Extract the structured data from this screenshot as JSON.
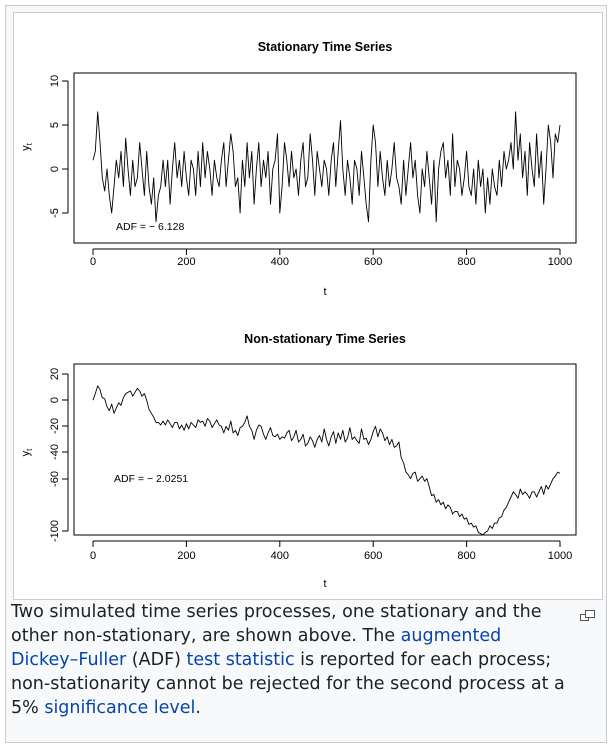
{
  "chart_data": [
    {
      "type": "line",
      "title": "Stationary Time Series",
      "xlabel": "t",
      "ylabel": "y",
      "ylabel_sub": "t",
      "xlim": [
        0,
        1000
      ],
      "ylim": [
        -7.5,
        11
      ],
      "xticks": [
        "0",
        "200",
        "400",
        "600",
        "800",
        "1000"
      ],
      "yticks": [
        "-5",
        "0",
        "5",
        "10"
      ],
      "annotation": "ADF = − 6.128",
      "series": [
        {
          "name": "stationary",
          "x": [
            0,
            5,
            10,
            15,
            20,
            25,
            30,
            35,
            40,
            45,
            50,
            55,
            60,
            65,
            70,
            75,
            80,
            85,
            90,
            95,
            100,
            105,
            110,
            115,
            120,
            125,
            130,
            135,
            140,
            145,
            150,
            155,
            160,
            165,
            170,
            175,
            180,
            185,
            190,
            195,
            200,
            205,
            210,
            215,
            220,
            225,
            230,
            235,
            240,
            245,
            250,
            255,
            260,
            265,
            270,
            275,
            280,
            285,
            290,
            295,
            300,
            305,
            310,
            315,
            320,
            325,
            330,
            335,
            340,
            345,
            350,
            355,
            360,
            365,
            370,
            375,
            380,
            385,
            390,
            395,
            400,
            405,
            410,
            415,
            420,
            425,
            430,
            435,
            440,
            445,
            450,
            455,
            460,
            465,
            470,
            475,
            480,
            485,
            490,
            495,
            500,
            505,
            510,
            515,
            520,
            525,
            530,
            535,
            540,
            545,
            550,
            555,
            560,
            565,
            570,
            575,
            580,
            585,
            590,
            595,
            600,
            605,
            610,
            615,
            620,
            625,
            630,
            635,
            640,
            645,
            650,
            655,
            660,
            665,
            670,
            675,
            680,
            685,
            690,
            695,
            700,
            705,
            710,
            715,
            720,
            725,
            730,
            735,
            740,
            745,
            750,
            755,
            760,
            765,
            770,
            775,
            780,
            785,
            790,
            795,
            800,
            805,
            810,
            815,
            820,
            825,
            830,
            835,
            840,
            845,
            850,
            855,
            860,
            865,
            870,
            875,
            880,
            885,
            890,
            895,
            900,
            905,
            910,
            915,
            920,
            925,
            930,
            935,
            940,
            945,
            950,
            955,
            960,
            965,
            970,
            975,
            980,
            985,
            990,
            995,
            1000
          ],
          "values": [
            1,
            2,
            6.5,
            3,
            -1,
            -2.5,
            0,
            -3,
            -5,
            -2,
            1,
            -1,
            2,
            -2,
            3.5,
            0,
            -3,
            1,
            -2,
            -1,
            3,
            0,
            -3,
            2,
            -2,
            -4,
            -1,
            -6,
            -3,
            -2,
            1,
            -2,
            1,
            -4,
            0,
            3,
            -1,
            1,
            -2,
            2,
            -1,
            -3,
            1,
            0,
            -3,
            2,
            -2,
            3,
            -1,
            2,
            0,
            -3,
            1,
            -1,
            -2,
            1,
            3,
            -2,
            1,
            4,
            2,
            -2,
            -1,
            -5,
            1,
            -2,
            3,
            -1,
            2,
            -4,
            0,
            3,
            -2,
            1,
            -1,
            2,
            -4,
            0,
            1,
            4,
            -5,
            -2,
            3,
            1,
            -2,
            2,
            -1,
            0,
            -3,
            1,
            3,
            -2,
            -1,
            4,
            1,
            -3,
            2,
            0,
            -2,
            1,
            0,
            -3,
            1,
            3,
            -2,
            2,
            5.5,
            0,
            -3,
            1,
            -1,
            -4,
            1,
            0,
            -3,
            2,
            -1,
            -4,
            -6,
            1,
            5,
            3,
            -2,
            2,
            -1,
            -3,
            1,
            -2,
            0,
            3,
            -1,
            -2,
            -4,
            1,
            -3,
            0,
            3,
            -1,
            1,
            -3,
            -5,
            0,
            -2,
            2,
            -1,
            -4,
            1,
            -6,
            0,
            2,
            3,
            -1,
            1,
            -3,
            4,
            -2,
            1,
            0,
            -3,
            -1,
            2,
            -2,
            -3,
            0,
            -4,
            1,
            -2,
            0,
            -5,
            -1,
            -4,
            0,
            -2,
            -3,
            1,
            -2,
            2,
            0,
            1,
            3,
            0,
            6.5,
            1,
            4,
            -1,
            2,
            -3,
            3,
            0,
            -2,
            4,
            -1,
            2,
            -4,
            0,
            5,
            3,
            -1,
            4,
            3,
            5
          ]
        }
      ]
    },
    {
      "type": "line",
      "title": "Non-stationary Time Series",
      "xlabel": "t",
      "ylabel": "y",
      "ylabel_sub": "t",
      "xlim": [
        0,
        1000
      ],
      "ylim": [
        -105,
        25
      ],
      "xticks": [
        "0",
        "200",
        "400",
        "600",
        "800",
        "1000"
      ],
      "yticks": [
        "-100",
        "-60",
        "-40",
        "-20",
        "0",
        "20"
      ],
      "annotation": "ADF = − 2.0251",
      "series": [
        {
          "name": "non-stationary",
          "x": [
            0,
            5,
            10,
            15,
            20,
            25,
            30,
            35,
            40,
            45,
            50,
            55,
            60,
            65,
            70,
            75,
            80,
            85,
            90,
            95,
            100,
            105,
            110,
            115,
            120,
            125,
            130,
            135,
            140,
            145,
            150,
            155,
            160,
            165,
            170,
            175,
            180,
            185,
            190,
            195,
            200,
            205,
            210,
            215,
            220,
            225,
            230,
            235,
            240,
            245,
            250,
            255,
            260,
            265,
            270,
            275,
            280,
            285,
            290,
            295,
            300,
            305,
            310,
            315,
            320,
            325,
            330,
            335,
            340,
            345,
            350,
            355,
            360,
            365,
            370,
            375,
            380,
            385,
            390,
            395,
            400,
            405,
            410,
            415,
            420,
            425,
            430,
            435,
            440,
            445,
            450,
            455,
            460,
            465,
            470,
            475,
            480,
            485,
            490,
            495,
            500,
            505,
            510,
            515,
            520,
            525,
            530,
            535,
            540,
            545,
            550,
            555,
            560,
            565,
            570,
            575,
            580,
            585,
            590,
            595,
            600,
            605,
            610,
            615,
            620,
            625,
            630,
            635,
            640,
            645,
            650,
            655,
            660,
            665,
            670,
            675,
            680,
            685,
            690,
            695,
            700,
            705,
            710,
            715,
            720,
            725,
            730,
            735,
            740,
            745,
            750,
            755,
            760,
            765,
            770,
            775,
            780,
            785,
            790,
            795,
            800,
            805,
            810,
            815,
            820,
            825,
            830,
            835,
            840,
            845,
            850,
            855,
            860,
            865,
            870,
            875,
            880,
            885,
            890,
            895,
            900,
            905,
            910,
            915,
            920,
            925,
            930,
            935,
            940,
            945,
            950,
            955,
            960,
            965,
            970,
            975,
            980,
            985,
            990,
            995,
            1000
          ],
          "values": [
            0,
            5,
            11,
            8,
            2,
            1,
            -5,
            -8,
            -3,
            -10,
            -6,
            -2,
            -4,
            2,
            5,
            6,
            7,
            3,
            6,
            9,
            7,
            3,
            5,
            0,
            -7,
            -10,
            -13,
            -17,
            -17,
            -19,
            -16,
            -19,
            -15,
            -18,
            -21,
            -17,
            -17,
            -22,
            -19,
            -23,
            -18,
            -22,
            -17,
            -19,
            -21,
            -15,
            -17,
            -16,
            -20,
            -14,
            -16,
            -21,
            -18,
            -15,
            -19,
            -20,
            -25,
            -20,
            -23,
            -16,
            -25,
            -23,
            -27,
            -21,
            -20,
            -17,
            -12,
            -20,
            -23,
            -30,
            -23,
            -19,
            -20,
            -26,
            -30,
            -25,
            -21,
            -27,
            -28,
            -26,
            -30,
            -28,
            -29,
            -25,
            -23,
            -31,
            -28,
            -23,
            -32,
            -30,
            -26,
            -35,
            -33,
            -28,
            -31,
            -36,
            -30,
            -27,
            -32,
            -22,
            -30,
            -35,
            -28,
            -24,
            -33,
            -25,
            -30,
            -23,
            -32,
            -29,
            -21,
            -30,
            -28,
            -31,
            -33,
            -22,
            -30,
            -29,
            -34,
            -30,
            -24,
            -20,
            -28,
            -22,
            -25,
            -31,
            -28,
            -34,
            -30,
            -36,
            -35,
            -32,
            -44,
            -48,
            -55,
            -57,
            -60,
            -56,
            -55,
            -62,
            -60,
            -58,
            -62,
            -60,
            -66,
            -73,
            -72,
            -78,
            -76,
            -80,
            -78,
            -83,
            -80,
            -82,
            -87,
            -85,
            -85,
            -89,
            -87,
            -91,
            -90,
            -95,
            -94,
            -97,
            -96,
            -101,
            -102,
            -103,
            -101,
            -100,
            -96,
            -98,
            -94,
            -94,
            -90,
            -89,
            -84,
            -82,
            -78,
            -74,
            -70,
            -72,
            -75,
            -68,
            -72,
            -70,
            -72,
            -75,
            -70,
            -70,
            -74,
            -70,
            -66,
            -72,
            -65,
            -68,
            -64,
            -60,
            -58,
            -55,
            -56
          ]
        }
      ]
    }
  ],
  "caption": {
    "t1": "Two simulated time series processes, one stationary and the other non-stationary, are shown above. The ",
    "link1": "augmented Dickey–Fuller",
    "t2": " (ADF) ",
    "link2": "test statistic",
    "t3": " is reported for each process; non-stationarity cannot be rejected for the second process at a 5% ",
    "link3": "significance level",
    "t4": "."
  },
  "magnify_icon": "enlarge-icon"
}
